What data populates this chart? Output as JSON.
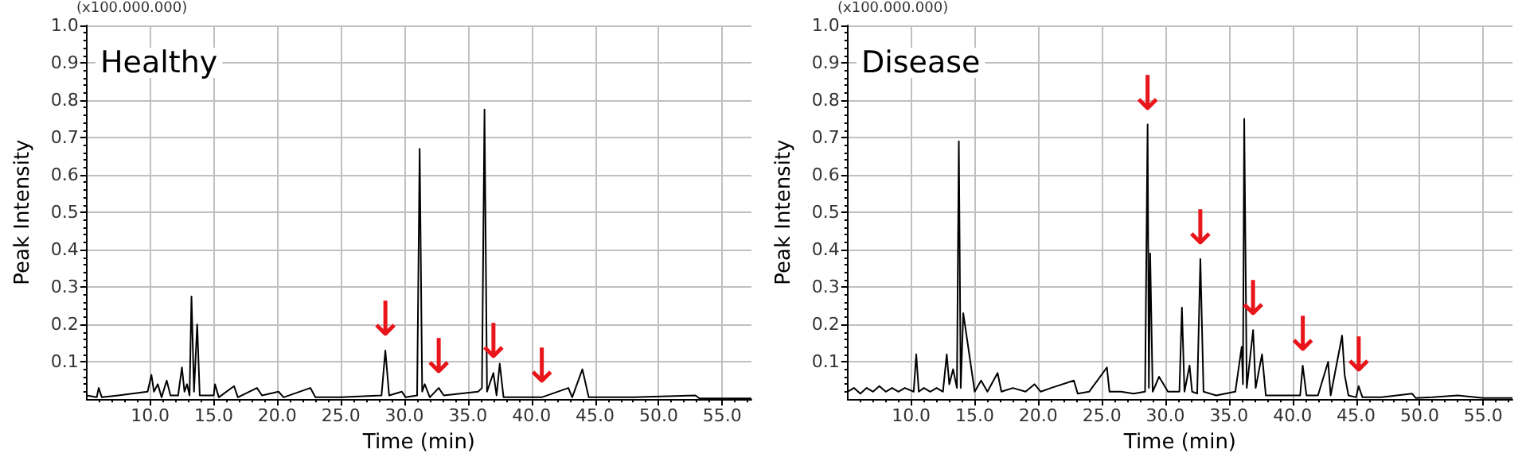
{
  "chart_data": [
    {
      "type": "line",
      "title": "Healthy",
      "xlabel": "Time (min)",
      "ylabel": "Peak Intensity",
      "annotations": [
        "(x100.000.000)",
        {
          "text": "↓",
          "x": 28.5,
          "y": 0.13
        },
        {
          "text": "↓",
          "x": 32.7,
          "y": 0.03
        },
        {
          "text": "↓",
          "x": 37.0,
          "y": 0.07
        },
        {
          "text": "↓",
          "x": 40.8,
          "y": 0.005
        }
      ],
      "xlim": [
        5,
        57.3
      ],
      "xticks": [
        {
          "value": 10,
          "label": "10.0"
        },
        {
          "value": 15,
          "label": "15.0"
        },
        {
          "value": 20,
          "label": "20.0"
        },
        {
          "value": 25,
          "label": "25.0"
        },
        {
          "value": 30,
          "label": "30.0"
        },
        {
          "value": 35,
          "label": "35.0"
        },
        {
          "value": 40,
          "label": "40.0"
        },
        {
          "value": 45,
          "label": "45.0"
        },
        {
          "value": 50,
          "label": "50.0"
        },
        {
          "value": 55,
          "label": "55.0"
        }
      ],
      "ylim": [
        0,
        1
      ],
      "yticks": [
        0.1,
        0.2,
        0.3,
        0.4,
        0.5,
        0.6,
        0.7,
        0.8,
        0.9,
        {
          "value": 1,
          "label": "1.0"
        }
      ],
      "grid": true,
      "x": [
        5,
        5.8,
        5.95,
        6.2,
        7.5,
        9.8,
        10.1,
        10.3,
        10.6,
        10.9,
        11.3,
        11.6,
        12.2,
        12.5,
        12.7,
        12.9,
        13.1,
        13.25,
        13.45,
        13.7,
        13.9,
        15.0,
        15.1,
        15.4,
        16.6,
        16.9,
        18.4,
        18.8,
        20.1,
        20.5,
        22.6,
        23.0,
        25,
        28.2,
        28.5,
        28.8,
        29.8,
        30.1,
        31.0,
        31.2,
        31.4,
        31.6,
        32.0,
        32.7,
        33.1,
        35.8,
        36.1,
        36.3,
        36.5,
        37.0,
        37.25,
        37.5,
        37.8,
        40.8,
        42.9,
        43.2,
        44.0,
        44.5,
        48,
        52.9,
        53.2,
        57.3
      ],
      "series": [
        {
          "color": "#000000",
          "values": [
            0.01,
            0.005,
            0.03,
            0.005,
            0.01,
            0.02,
            0.065,
            0.02,
            0.04,
            0.005,
            0.05,
            0.01,
            0.01,
            0.085,
            0.02,
            0.04,
            0.01,
            0.275,
            0.02,
            0.2,
            0.01,
            0.01,
            0.04,
            0.005,
            0.035,
            0.005,
            0.03,
            0.01,
            0.02,
            0.005,
            0.03,
            0.005,
            0.005,
            0.01,
            0.13,
            0.01,
            0.02,
            0.005,
            0.01,
            0.67,
            0.02,
            0.04,
            0.005,
            0.03,
            0.01,
            0.02,
            0.03,
            0.775,
            0.02,
            0.07,
            0.01,
            0.095,
            0.005,
            0.005,
            0.03,
            0.005,
            0.08,
            0.005,
            0.005,
            0.01,
            0.002,
            0.002
          ]
        }
      ]
    },
    {
      "type": "line",
      "title": "Disease",
      "xlabel": "Time (min)",
      "ylabel": "Peak Intensity",
      "annotations": [
        "(x100.000.000)",
        {
          "text": "↓",
          "x": 28.6,
          "y": 0.735
        },
        {
          "text": "↓",
          "x": 32.75,
          "y": 0.375
        },
        {
          "text": "↓",
          "x": 36.9,
          "y": 0.185
        },
        {
          "text": "↓",
          "x": 40.8,
          "y": 0.09
        },
        {
          "text": "↓",
          "x": 45.2,
          "y": 0.035
        }
      ],
      "xlim": [
        5,
        57.3
      ],
      "xticks": [
        {
          "value": 10,
          "label": "10.0"
        },
        {
          "value": 15,
          "label": "15.0"
        },
        {
          "value": 20,
          "label": "20.0"
        },
        {
          "value": 25,
          "label": "25.0"
        },
        {
          "value": 30,
          "label": "30.0"
        },
        {
          "value": 35,
          "label": "35.0"
        },
        {
          "value": 40,
          "label": "40.0"
        },
        {
          "value": 45,
          "label": "45.0"
        },
        {
          "value": 50,
          "label": "50.0"
        },
        {
          "value": 55,
          "label": "55.0"
        }
      ],
      "ylim": [
        0,
        1
      ],
      "yticks": [
        0.1,
        0.2,
        0.3,
        0.4,
        0.5,
        0.6,
        0.7,
        0.8,
        0.9,
        {
          "value": 1,
          "label": "1.0"
        }
      ],
      "grid": true,
      "x": [
        5,
        5.5,
        6,
        6.5,
        7,
        7.5,
        8,
        8.5,
        9,
        9.5,
        10.2,
        10.4,
        10.6,
        11,
        11.5,
        12,
        12.5,
        12.8,
        13.0,
        13.3,
        13.6,
        13.75,
        13.9,
        14.1,
        15,
        15.5,
        16,
        16.8,
        17.1,
        18,
        19,
        19.7,
        20.2,
        21,
        22.8,
        23.1,
        24,
        25.4,
        25.6,
        26.5,
        27.5,
        28.4,
        28.6,
        28.7,
        28.8,
        29.0,
        29.5,
        30.2,
        31.1,
        31.3,
        31.5,
        31.9,
        32.1,
        32.5,
        32.75,
        33.0,
        34,
        35.5,
        36.0,
        36.1,
        36.2,
        36.4,
        36.9,
        37.1,
        37.6,
        37.9,
        39,
        40.6,
        40.8,
        41.1,
        42.0,
        42.8,
        43.0,
        43.9,
        44.1,
        44.4,
        45.0,
        45.2,
        45.5,
        47,
        49.4,
        49.7,
        51,
        53,
        55,
        57.3
      ],
      "series": [
        {
          "color": "#000000",
          "values": [
            0.02,
            0.03,
            0.015,
            0.03,
            0.02,
            0.035,
            0.02,
            0.03,
            0.02,
            0.03,
            0.02,
            0.12,
            0.02,
            0.03,
            0.02,
            0.03,
            0.02,
            0.12,
            0.04,
            0.08,
            0.03,
            0.69,
            0.03,
            0.23,
            0.02,
            0.05,
            0.02,
            0.07,
            0.02,
            0.03,
            0.02,
            0.04,
            0.02,
            0.03,
            0.05,
            0.015,
            0.02,
            0.085,
            0.02,
            0.02,
            0.015,
            0.02,
            0.735,
            0.03,
            0.39,
            0.02,
            0.06,
            0.02,
            0.02,
            0.245,
            0.02,
            0.09,
            0.02,
            0.015,
            0.375,
            0.02,
            0.01,
            0.02,
            0.14,
            0.04,
            0.75,
            0.03,
            0.185,
            0.03,
            0.12,
            0.01,
            0.01,
            0.01,
            0.09,
            0.01,
            0.01,
            0.1,
            0.01,
            0.17,
            0.065,
            0.01,
            0.005,
            0.035,
            0.005,
            0.005,
            0.015,
            0.003,
            0.005,
            0.01,
            0.003,
            0.003
          ]
        }
      ]
    }
  ]
}
